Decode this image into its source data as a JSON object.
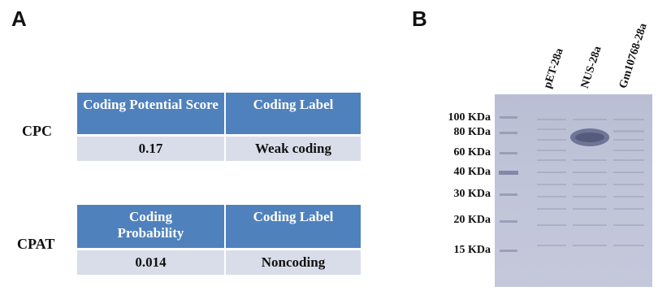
{
  "panel_a": {
    "letter": "A",
    "cpc": {
      "tool": "CPC",
      "headers": [
        "Coding Potential Score",
        "Coding Label"
      ],
      "values": [
        "0.17",
        "Weak coding"
      ]
    },
    "cpat": {
      "tool": "CPAT",
      "headers": [
        "Coding Probability",
        "Coding Label"
      ],
      "values": [
        "0.014",
        "Noncoding"
      ]
    }
  },
  "panel_b": {
    "letter": "B",
    "lanes": [
      "pET-28a",
      "NUS-28a",
      "Gm10768-28a"
    ],
    "ladder": [
      "100 KDa",
      "80 KDa",
      "60 KDa",
      "40 KDa",
      "30 KDa",
      "20 KDa",
      "15 KDa"
    ],
    "colors": {
      "gel": "#c0c4d8",
      "band": "#6f7596",
      "table_header": "#4f81bd",
      "table_cell": "#d8dde9"
    }
  }
}
